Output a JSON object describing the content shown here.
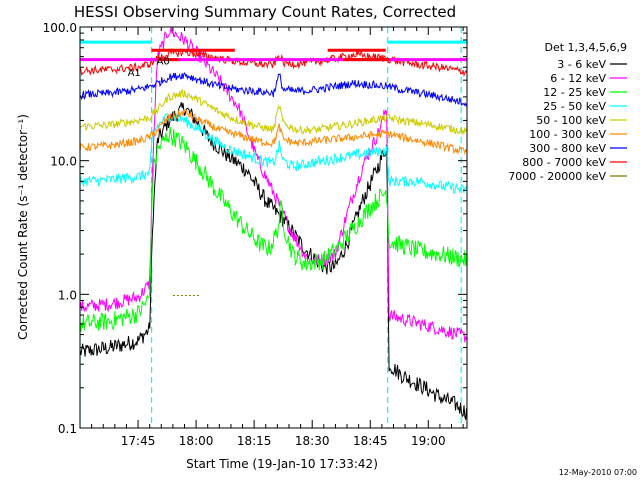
{
  "chart_data": {
    "type": "line",
    "title": "HESSI Observing Summary Count Rates, Corrected",
    "xlabel": "Start Time (19-Jan-10 17:33:42)",
    "ylabel": "Corrected Count Rate (s⁻¹ detector⁻¹)",
    "y_scale": "log",
    "ylim": [
      0.1,
      100.0
    ],
    "xlim_minutes": [
      -3,
      97
    ],
    "x_ticks": [
      {
        "m": 12,
        "label": "17:45"
      },
      {
        "m": 27,
        "label": "18:00"
      },
      {
        "m": 42,
        "label": "18:15"
      },
      {
        "m": 57,
        "label": "18:30"
      },
      {
        "m": 72,
        "label": "18:45"
      },
      {
        "m": 87,
        "label": "19:00"
      }
    ],
    "y_ticks": [
      {
        "v": 0.1,
        "label": "0.1"
      },
      {
        "v": 1.0,
        "label": "1.0"
      },
      {
        "v": 10.0,
        "label": "10.0"
      },
      {
        "v": 100.0,
        "label": "100.0"
      }
    ],
    "legend_title": "Det 1,3,4,5,6,9",
    "legend_placement": "right",
    "timestamp": "12-May-2010 07:00",
    "vlines": [
      {
        "m": -3,
        "color": "#00ffff",
        "style": "solid"
      },
      {
        "m": 15.5,
        "color": "#00ffff",
        "style": "dashed"
      },
      {
        "m": 76.5,
        "color": "#00ffff",
        "style": "dashed"
      },
      {
        "m": 95.5,
        "color": "#00ffff",
        "style": "dashed"
      }
    ],
    "flag_bars": [
      {
        "color": "#00ffff",
        "y": 77.0,
        "segments": [
          [
            -3,
            15.5
          ],
          [
            76.5,
            97
          ]
        ]
      },
      {
        "color": "#ff0000",
        "y": 67.0,
        "segments": [
          [
            15.5,
            37
          ],
          [
            61,
            76
          ]
        ]
      },
      {
        "color": "#ff00ff",
        "y": 57.0,
        "segments": [
          [
            -3,
            97
          ]
        ]
      },
      {
        "color": "#ff0000",
        "y": 57.0,
        "segments": [
          [
            17,
            22.5
          ],
          [
            65,
            77
          ]
        ]
      }
    ],
    "flag_labels": [
      {
        "text": "A1",
        "m": 11,
        "y": 46
      },
      {
        "text": "A0",
        "m": 18.5,
        "y": 56
      }
    ],
    "series": [
      {
        "name": "3 - 6 keV",
        "color": "#000000",
        "jitter": 0.06,
        "points": [
          [
            -3,
            0.37
          ],
          [
            5,
            0.4
          ],
          [
            12,
            0.45
          ],
          [
            15,
            0.55
          ],
          [
            15.8,
            3.5
          ],
          [
            17,
            14
          ],
          [
            20,
            20
          ],
          [
            24,
            25
          ],
          [
            27,
            20
          ],
          [
            30,
            15
          ],
          [
            35,
            11
          ],
          [
            40,
            8.5
          ],
          [
            45,
            5
          ],
          [
            50,
            3.5
          ],
          [
            55,
            2.2
          ],
          [
            60,
            1.6
          ],
          [
            63,
            1.6
          ],
          [
            66,
            2.4
          ],
          [
            70,
            5
          ],
          [
            74,
            9
          ],
          [
            76.3,
            13
          ],
          [
            76.8,
            0.3
          ],
          [
            80,
            0.25
          ],
          [
            86,
            0.2
          ],
          [
            90,
            0.17
          ],
          [
            94,
            0.15
          ],
          [
            97,
            0.13
          ]
        ]
      },
      {
        "name": "6 - 12 keV",
        "color": "#ff00ff",
        "jitter": 0.05,
        "points": [
          [
            -3,
            0.8
          ],
          [
            5,
            0.85
          ],
          [
            12,
            0.95
          ],
          [
            15,
            1.2
          ],
          [
            15.8,
            10
          ],
          [
            17,
            60
          ],
          [
            20,
            95
          ],
          [
            24,
            80
          ],
          [
            28,
            60
          ],
          [
            33,
            40
          ],
          [
            38,
            25
          ],
          [
            43,
            10
          ],
          [
            48,
            5
          ],
          [
            52,
            2.8
          ],
          [
            56,
            1.8
          ],
          [
            60,
            1.8
          ],
          [
            63,
            2
          ],
          [
            66,
            4
          ],
          [
            70,
            9
          ],
          [
            74,
            16
          ],
          [
            76.3,
            25
          ],
          [
            76.8,
            0.7
          ],
          [
            85,
            0.6
          ],
          [
            90,
            0.55
          ],
          [
            97,
            0.48
          ]
        ]
      },
      {
        "name": "12 - 25 keV",
        "color": "#00ff00",
        "jitter": 0.07,
        "points": [
          [
            -3,
            0.6
          ],
          [
            5,
            0.63
          ],
          [
            12,
            0.72
          ],
          [
            15,
            0.95
          ],
          [
            15.8,
            8
          ],
          [
            17,
            12
          ],
          [
            20,
            16
          ],
          [
            24,
            13
          ],
          [
            28,
            9
          ],
          [
            32,
            6
          ],
          [
            36,
            4.2
          ],
          [
            40,
            3
          ],
          [
            44,
            2.3
          ],
          [
            46,
            2.2
          ],
          [
            48,
            3
          ],
          [
            49,
            4.5
          ],
          [
            50,
            3
          ],
          [
            52,
            2
          ],
          [
            55,
            1.7
          ],
          [
            60,
            1.8
          ],
          [
            64,
            2.3
          ],
          [
            68,
            3.2
          ],
          [
            72,
            4.5
          ],
          [
            76.3,
            6
          ],
          [
            76.8,
            2.5
          ],
          [
            85,
            2.1
          ],
          [
            90,
            2
          ],
          [
            97,
            1.8
          ]
        ]
      },
      {
        "name": "25 - 50 keV",
        "color": "#00ffff",
        "jitter": 0.04,
        "points": [
          [
            -3,
            7
          ],
          [
            5,
            7.2
          ],
          [
            12,
            7.6
          ],
          [
            15,
            8
          ],
          [
            15.8,
            16
          ],
          [
            17,
            18
          ],
          [
            20,
            22
          ],
          [
            24,
            20
          ],
          [
            28,
            17
          ],
          [
            32,
            14
          ],
          [
            36,
            12
          ],
          [
            40,
            11
          ],
          [
            44,
            10
          ],
          [
            47,
            9.5
          ],
          [
            48.5,
            13
          ],
          [
            49.5,
            10
          ],
          [
            52,
            9
          ],
          [
            56,
            9.5
          ],
          [
            60,
            10
          ],
          [
            64,
            10.5
          ],
          [
            68,
            11
          ],
          [
            72,
            11.5
          ],
          [
            76.3,
            12
          ],
          [
            76.8,
            7
          ],
          [
            85,
            7
          ],
          [
            90,
            6.5
          ],
          [
            97,
            6
          ]
        ]
      },
      {
        "name": "50 - 100 keV",
        "color": "#cccc00",
        "jitter": 0.03,
        "points": [
          [
            -3,
            18
          ],
          [
            5,
            18.5
          ],
          [
            12,
            20
          ],
          [
            15,
            21
          ],
          [
            17,
            24
          ],
          [
            20,
            30
          ],
          [
            24,
            32
          ],
          [
            28,
            28
          ],
          [
            33,
            23
          ],
          [
            38,
            20
          ],
          [
            43,
            18
          ],
          [
            47,
            17
          ],
          [
            48.5,
            26
          ],
          [
            49.5,
            19
          ],
          [
            53,
            17
          ],
          [
            58,
            17
          ],
          [
            63,
            18
          ],
          [
            68,
            19
          ],
          [
            72,
            20
          ],
          [
            76.3,
            21
          ],
          [
            80,
            20
          ],
          [
            85,
            19
          ],
          [
            90,
            18
          ],
          [
            97,
            16.5
          ]
        ]
      },
      {
        "name": "100 - 300 keV",
        "color": "#ff8800",
        "jitter": 0.03,
        "points": [
          [
            -3,
            12.5
          ],
          [
            5,
            13
          ],
          [
            12,
            14
          ],
          [
            15,
            15
          ],
          [
            17,
            17
          ],
          [
            20,
            21
          ],
          [
            24,
            23
          ],
          [
            28,
            20
          ],
          [
            33,
            17
          ],
          [
            38,
            15.5
          ],
          [
            43,
            14
          ],
          [
            47,
            13.5
          ],
          [
            48.5,
            18
          ],
          [
            49.5,
            14.5
          ],
          [
            53,
            13.5
          ],
          [
            58,
            14
          ],
          [
            63,
            14.5
          ],
          [
            68,
            15
          ],
          [
            72,
            15.5
          ],
          [
            76.3,
            16
          ],
          [
            80,
            15
          ],
          [
            85,
            14
          ],
          [
            90,
            13
          ],
          [
            97,
            11.5
          ]
        ]
      },
      {
        "name": "300 - 800 keV",
        "color": "#0000ff",
        "jitter": 0.03,
        "points": [
          [
            -3,
            31
          ],
          [
            5,
            32
          ],
          [
            12,
            34
          ],
          [
            15,
            36
          ],
          [
            17,
            38
          ],
          [
            20,
            42
          ],
          [
            24,
            44
          ],
          [
            28,
            40
          ],
          [
            33,
            36
          ],
          [
            38,
            34
          ],
          [
            43,
            33
          ],
          [
            47,
            32
          ],
          [
            48.5,
            44
          ],
          [
            49.5,
            34
          ],
          [
            53,
            33
          ],
          [
            58,
            34
          ],
          [
            63,
            36
          ],
          [
            68,
            38
          ],
          [
            72,
            37
          ],
          [
            76.3,
            36
          ],
          [
            80,
            34
          ],
          [
            85,
            32
          ],
          [
            90,
            30
          ],
          [
            97,
            27
          ]
        ]
      },
      {
        "name": "800 - 7000 keV",
        "color": "#ff0000",
        "jitter": 0.03,
        "points": [
          [
            -3,
            47
          ],
          [
            5,
            48
          ],
          [
            12,
            50
          ],
          [
            15,
            53
          ],
          [
            17,
            58
          ],
          [
            20,
            63
          ],
          [
            24,
            65
          ],
          [
            28,
            62
          ],
          [
            33,
            58
          ],
          [
            38,
            55
          ],
          [
            43,
            53
          ],
          [
            47,
            52
          ],
          [
            48.5,
            62
          ],
          [
            49.5,
            54
          ],
          [
            53,
            53
          ],
          [
            58,
            55
          ],
          [
            63,
            58
          ],
          [
            68,
            62
          ],
          [
            72,
            60
          ],
          [
            76.3,
            58
          ],
          [
            80,
            55
          ],
          [
            85,
            52
          ],
          [
            90,
            50
          ],
          [
            97,
            46
          ]
        ]
      },
      {
        "name": "7000 - 20000 keV",
        "color": "#887700",
        "jitter": 0.0,
        "points": [
          [
            21,
            0.98
          ],
          [
            28,
            0.98
          ]
        ]
      }
    ]
  }
}
